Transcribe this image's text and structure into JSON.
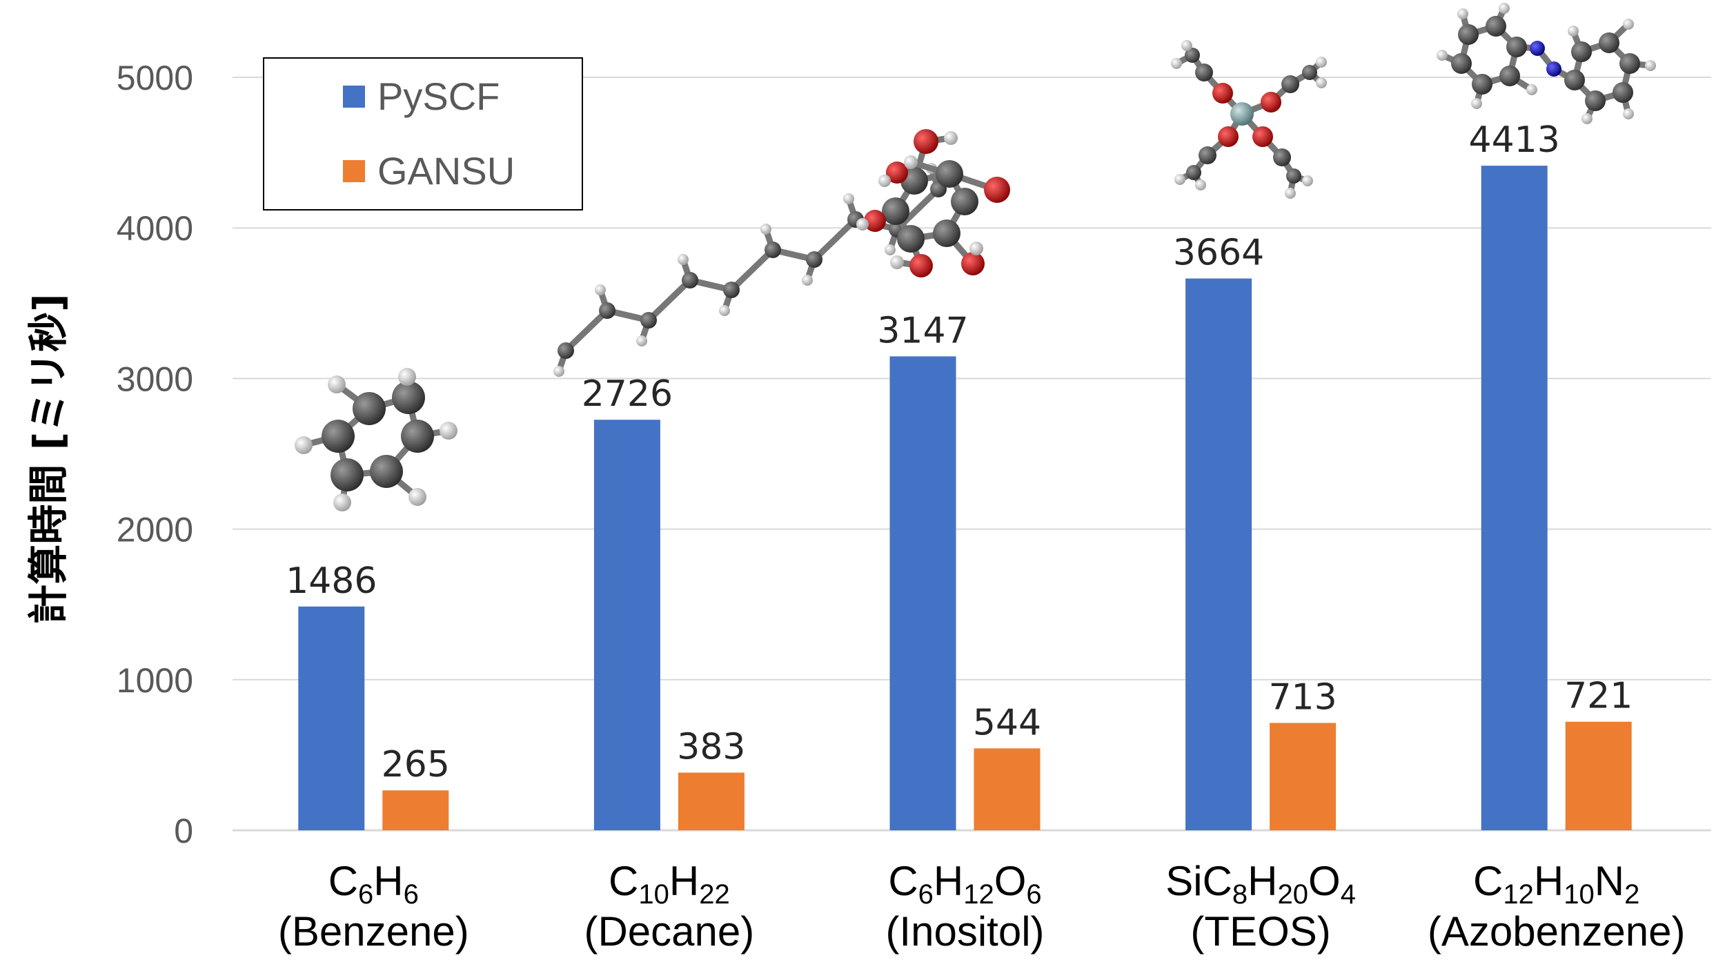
{
  "chart_data": {
    "type": "bar",
    "ylabel": "計算時間 [ミリ秒]",
    "ylim": [
      0,
      5000
    ],
    "yticks": [
      "0",
      "1000",
      "2000",
      "3000",
      "4000",
      "5000"
    ],
    "grid": true,
    "legend_position": "top-left",
    "categories": [
      {
        "formula": [
          [
            "C",
            ""
          ],
          [
            "6",
            "sub"
          ],
          [
            "H",
            ""
          ],
          [
            "6",
            "sub"
          ]
        ],
        "name": "(Benzene)"
      },
      {
        "formula": [
          [
            "C",
            ""
          ],
          [
            "10",
            "sub"
          ],
          [
            "H",
            ""
          ],
          [
            "22",
            "sub"
          ]
        ],
        "name": "(Decane)"
      },
      {
        "formula": [
          [
            "C",
            ""
          ],
          [
            "6",
            "sub"
          ],
          [
            "H",
            ""
          ],
          [
            "12",
            "sub"
          ],
          [
            "O",
            ""
          ],
          [
            "6",
            "sub"
          ]
        ],
        "name": "(Inositol)"
      },
      {
        "formula": [
          [
            "SiC",
            ""
          ],
          [
            "8",
            "sub"
          ],
          [
            "H",
            ""
          ],
          [
            "20",
            "sub"
          ],
          [
            "O",
            ""
          ],
          [
            "4",
            "sub"
          ]
        ],
        "name": "(TEOS)"
      },
      {
        "formula": [
          [
            "C",
            ""
          ],
          [
            "12",
            "sub"
          ],
          [
            "H",
            ""
          ],
          [
            "10",
            "sub"
          ],
          [
            "N",
            ""
          ],
          [
            "2",
            "sub"
          ]
        ],
        "name": "(Azobenzene)"
      }
    ],
    "series": [
      {
        "name": "PySCF",
        "color": "#4472C4",
        "values": [
          1486,
          2726,
          3147,
          3664,
          4413
        ]
      },
      {
        "name": "GANSU",
        "color": "#ED7D31",
        "values": [
          265,
          383,
          544,
          713,
          721
        ]
      }
    ]
  }
}
